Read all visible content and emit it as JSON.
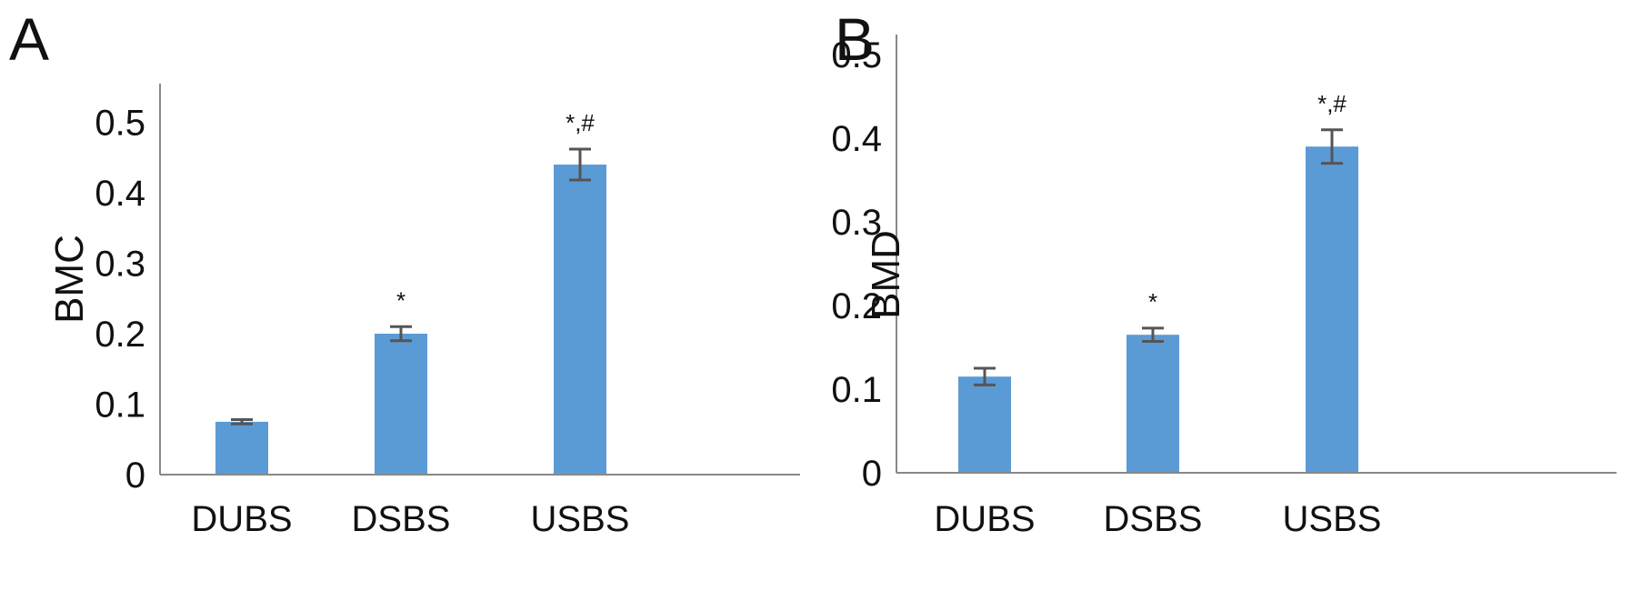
{
  "chart_data": [
    {
      "panel": "A",
      "type": "bar",
      "ylabel": "BMC",
      "xlabel": "",
      "categories": [
        "DUBS",
        "DSBS",
        "USBS"
      ],
      "values": [
        0.075,
        0.2,
        0.44
      ],
      "errors": [
        0.003,
        0.01,
        0.022
      ],
      "annotations": [
        "",
        "*",
        "*,#"
      ],
      "yticks": [
        "0",
        "0.1",
        "0.2",
        "0.3",
        "0.4",
        "0.5"
      ],
      "ylim": [
        0,
        0.55
      ],
      "bar_color": "#5b9bd5",
      "grid": false,
      "legend": "none"
    },
    {
      "panel": "B",
      "type": "bar",
      "ylabel": "BMD",
      "xlabel": "",
      "categories": [
        "DUBS",
        "DSBS",
        "USBS"
      ],
      "values": [
        0.115,
        0.165,
        0.39
      ],
      "errors": [
        0.01,
        0.008,
        0.02
      ],
      "annotations": [
        "",
        "*",
        "*,#"
      ],
      "yticks": [
        "0",
        "0.1",
        "0.2",
        "0.3",
        "0.4",
        "0.5"
      ],
      "ylim": [
        0,
        0.52
      ],
      "bar_color": "#5b9bd5",
      "grid": false,
      "legend": "none"
    }
  ]
}
